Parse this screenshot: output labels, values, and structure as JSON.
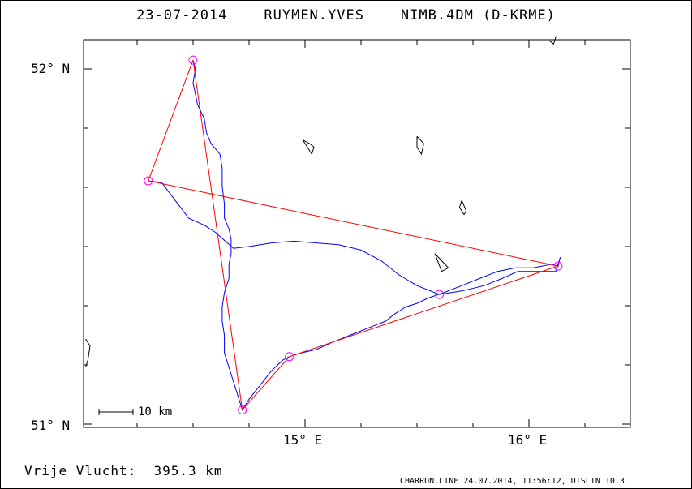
{
  "title": {
    "date": "23-07-2014",
    "pilot": "RUYMEN.YVES",
    "aircraft": "NIMB.4DM (D-KRME)"
  },
  "axes": {
    "y_labels": [
      "52° N",
      "51° N"
    ],
    "x_labels": [
      "15° E",
      "16° E"
    ]
  },
  "scale_label": "10 km",
  "distance": {
    "label": "Vrije Vlucht:",
    "value": "395.3 km"
  },
  "footer": "CHARRON.LINE 24.07.2014, 11:56:12, DISLIN 10.3",
  "colors": {
    "task_line": "#ff0000",
    "track": "#0000ff",
    "turnpoint": "#ff00ff",
    "coast": "#000000"
  },
  "turnpoints": [
    {
      "lon": 14.5,
      "lat": 52.025
    },
    {
      "lon": 14.3,
      "lat": 51.685
    },
    {
      "lon": 14.72,
      "lat": 51.04
    },
    {
      "lon": 14.93,
      "lat": 51.19
    },
    {
      "lon": 16.13,
      "lat": 51.445
    },
    {
      "lon": 15.6,
      "lat": 51.365
    }
  ],
  "track": [
    [
      14.5,
      52.025
    ],
    [
      14.51,
      52.0
    ],
    [
      14.5,
      51.96
    ],
    [
      14.51,
      51.93
    ],
    [
      14.52,
      51.9
    ],
    [
      14.55,
      51.86
    ],
    [
      14.56,
      51.82
    ],
    [
      14.58,
      51.79
    ],
    [
      14.62,
      51.76
    ],
    [
      14.63,
      51.72
    ],
    [
      14.63,
      51.67
    ],
    [
      14.64,
      51.62
    ],
    [
      14.64,
      51.58
    ],
    [
      14.66,
      51.55
    ],
    [
      14.67,
      51.52
    ],
    [
      14.67,
      51.48
    ],
    [
      14.66,
      51.45
    ],
    [
      14.66,
      51.41
    ],
    [
      14.64,
      51.37
    ],
    [
      14.63,
      51.33
    ],
    [
      14.63,
      51.29
    ],
    [
      14.64,
      51.25
    ],
    [
      14.64,
      51.2
    ],
    [
      14.66,
      51.16
    ],
    [
      14.68,
      51.12
    ],
    [
      14.7,
      51.08
    ],
    [
      14.72,
      51.04
    ],
    [
      14.75,
      51.07
    ],
    [
      14.8,
      51.11
    ],
    [
      14.85,
      51.15
    ],
    [
      14.9,
      51.18
    ],
    [
      14.93,
      51.19
    ],
    [
      14.98,
      51.2
    ],
    [
      15.05,
      51.21
    ],
    [
      15.12,
      51.23
    ],
    [
      15.2,
      51.25
    ],
    [
      15.28,
      51.27
    ],
    [
      15.36,
      51.29
    ],
    [
      15.4,
      51.31
    ],
    [
      15.45,
      51.33
    ],
    [
      15.5,
      51.34
    ],
    [
      15.55,
      51.355
    ],
    [
      15.62,
      51.37
    ],
    [
      15.7,
      51.39
    ],
    [
      15.78,
      51.41
    ],
    [
      15.86,
      51.43
    ],
    [
      15.94,
      51.44
    ],
    [
      16.02,
      51.44
    ],
    [
      16.1,
      51.45
    ],
    [
      16.13,
      51.445
    ],
    [
      16.14,
      51.47
    ],
    [
      16.12,
      51.43
    ],
    [
      16.05,
      51.43
    ],
    [
      15.95,
      51.43
    ],
    [
      15.88,
      51.41
    ],
    [
      15.8,
      51.39
    ],
    [
      15.7,
      51.375
    ],
    [
      15.6,
      51.365
    ],
    [
      15.5,
      51.39
    ],
    [
      15.42,
      51.42
    ],
    [
      15.34,
      51.46
    ],
    [
      15.25,
      51.49
    ],
    [
      15.15,
      51.505
    ],
    [
      15.05,
      51.51
    ],
    [
      14.95,
      51.515
    ],
    [
      14.85,
      51.51
    ],
    [
      14.75,
      51.5
    ],
    [
      14.68,
      51.495
    ],
    [
      14.6,
      51.54
    ],
    [
      14.55,
      51.56
    ],
    [
      14.48,
      51.58
    ],
    [
      14.42,
      51.63
    ],
    [
      14.36,
      51.68
    ],
    [
      14.3,
      51.685
    ]
  ],
  "task": [
    [
      14.5,
      52.025
    ],
    [
      14.3,
      51.685
    ],
    [
      16.13,
      51.445
    ],
    [
      14.93,
      51.19
    ],
    [
      14.72,
      51.04
    ],
    [
      14.5,
      52.025
    ]
  ],
  "coast": [
    [
      [
        14.02,
        51.24
      ],
      [
        14.04,
        51.22
      ],
      [
        14.03,
        51.18
      ],
      [
        14.02,
        51.16
      ]
    ],
    [
      [
        14.99,
        51.8
      ],
      [
        15.02,
        51.79
      ],
      [
        15.04,
        51.78
      ],
      [
        15.03,
        51.76
      ],
      [
        15.01,
        51.78
      ],
      [
        14.99,
        51.8
      ]
    ],
    [
      [
        15.5,
        51.81
      ],
      [
        15.53,
        51.79
      ],
      [
        15.52,
        51.76
      ],
      [
        15.5,
        51.78
      ],
      [
        15.5,
        51.81
      ]
    ],
    [
      [
        15.7,
        51.63
      ],
      [
        15.72,
        51.6
      ],
      [
        15.71,
        51.59
      ],
      [
        15.69,
        51.61
      ],
      [
        15.7,
        51.63
      ]
    ],
    [
      [
        15.58,
        51.48
      ],
      [
        15.61,
        51.46
      ],
      [
        15.64,
        51.44
      ],
      [
        15.61,
        51.43
      ],
      [
        15.58,
        51.48
      ]
    ],
    [
      [
        16.09,
        52.08
      ],
      [
        16.11,
        52.07
      ],
      [
        16.12,
        52.09
      ]
    ]
  ]
}
